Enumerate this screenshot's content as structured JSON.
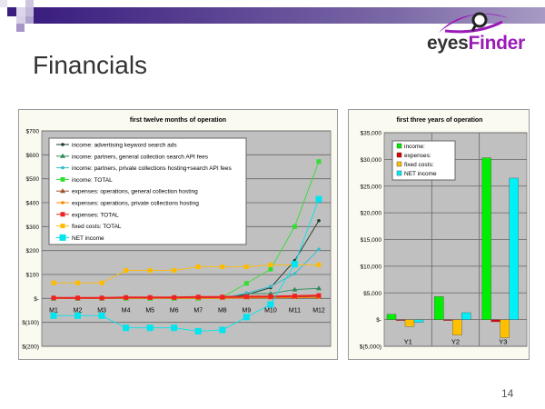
{
  "slide": {
    "title": "Financials",
    "page_number": "14"
  },
  "logo": {
    "text_part1": "eyes",
    "text_part2": "Finder"
  },
  "colors": {
    "accent": "#3a1d7f",
    "logo_purple": "#9b19b8",
    "plot_bg": "#c0c0c0"
  },
  "chart_data": [
    {
      "type": "line",
      "title": "first twelve months of operation",
      "ylim": [
        -200,
        700
      ],
      "yticks": [
        700,
        600,
        500,
        400,
        300,
        200,
        100,
        0,
        -100,
        -200
      ],
      "ytick_labels": [
        "$700",
        "$600",
        "$500",
        "$400",
        "$300",
        "$200",
        "$100",
        "$-",
        "$(100)",
        "$(200)"
      ],
      "categories": [
        "M1",
        "M2",
        "M3",
        "M4",
        "M5",
        "M6",
        "M7",
        "M8",
        "M9",
        "M10",
        "M11",
        "M12"
      ],
      "legend_position": "top-left",
      "series": [
        {
          "name": "income: advertising keyword search ads",
          "color": "#1a3a2a",
          "marker": "dot",
          "values": [
            0,
            0,
            0,
            0,
            0,
            0,
            0,
            3,
            15,
            45,
            158,
            325
          ]
        },
        {
          "name": "income: partners, general collection search API fees",
          "color": "#2e8b57",
          "marker": "triangle",
          "values": [
            0,
            0,
            0,
            0,
            0,
            0,
            0,
            2,
            20,
            20,
            37,
            42
          ]
        },
        {
          "name": "income: partners, private collections hosting+search API fees",
          "color": "#33bbcc",
          "marker": "dot",
          "values": [
            0,
            0,
            0,
            0,
            0,
            0,
            0,
            2,
            22,
            50,
            103,
            205
          ]
        },
        {
          "name": "income: TOTAL",
          "color": "#33dd33",
          "marker": "square",
          "values": [
            0,
            0,
            0,
            0,
            0,
            0,
            0,
            5,
            63,
            122,
            300,
            572
          ]
        },
        {
          "name": "expenses: operations, general collection hosting",
          "color": "#a0522d",
          "marker": "triangle",
          "values": [
            0,
            0,
            0,
            2,
            2,
            2,
            3,
            3,
            4,
            4,
            5,
            6
          ]
        },
        {
          "name": "expenses: operations, private collections hosting",
          "color": "#ff8800",
          "marker": "dot",
          "values": [
            0,
            0,
            0,
            0,
            0,
            0,
            0,
            0,
            2,
            2,
            3,
            4
          ]
        },
        {
          "name": "expenses: TOTAL",
          "color": "#ee2222",
          "marker": "square",
          "values": [
            2,
            2,
            2,
            4,
            4,
            4,
            6,
            6,
            8,
            8,
            10,
            12
          ]
        },
        {
          "name": "fixed costs: TOTAL",
          "color": "#ffbb00",
          "marker": "square",
          "values": [
            65,
            65,
            65,
            117,
            117,
            117,
            132,
            132,
            132,
            140,
            140,
            140
          ]
        },
        {
          "name": "NET income",
          "color": "#00e5ee",
          "marker": "bigsquare",
          "values": [
            -72,
            -72,
            -72,
            -123,
            -123,
            -123,
            -137,
            -132,
            -78,
            -25,
            143,
            415
          ]
        }
      ]
    },
    {
      "type": "bar",
      "title": "first three years of operation",
      "ylim": [
        -5000,
        35000
      ],
      "yticks": [
        35000,
        30000,
        25000,
        20000,
        15000,
        10000,
        5000,
        0,
        -5000
      ],
      "ytick_labels": [
        "$35,000",
        "$30,000",
        "$25,000",
        "$20,000",
        "$15,000",
        "$10,000",
        "$5,000",
        "$-",
        "$(5,000)"
      ],
      "categories": [
        "Y1",
        "Y2",
        "Y3"
      ],
      "legend_position": "top-left",
      "series": [
        {
          "name": "income:",
          "color": "#00ee00",
          "values": [
            1000,
            4300,
            30300
          ]
        },
        {
          "name": "expenses:",
          "color": "#dd0000",
          "values": [
            -100,
            -100,
            -400
          ]
        },
        {
          "name": "fixed costs:",
          "color": "#ffc000",
          "values": [
            -1300,
            -2900,
            -3400
          ]
        },
        {
          "name": "NET income",
          "color": "#00f0f8",
          "values": [
            -500,
            1300,
            26500
          ]
        }
      ]
    }
  ]
}
